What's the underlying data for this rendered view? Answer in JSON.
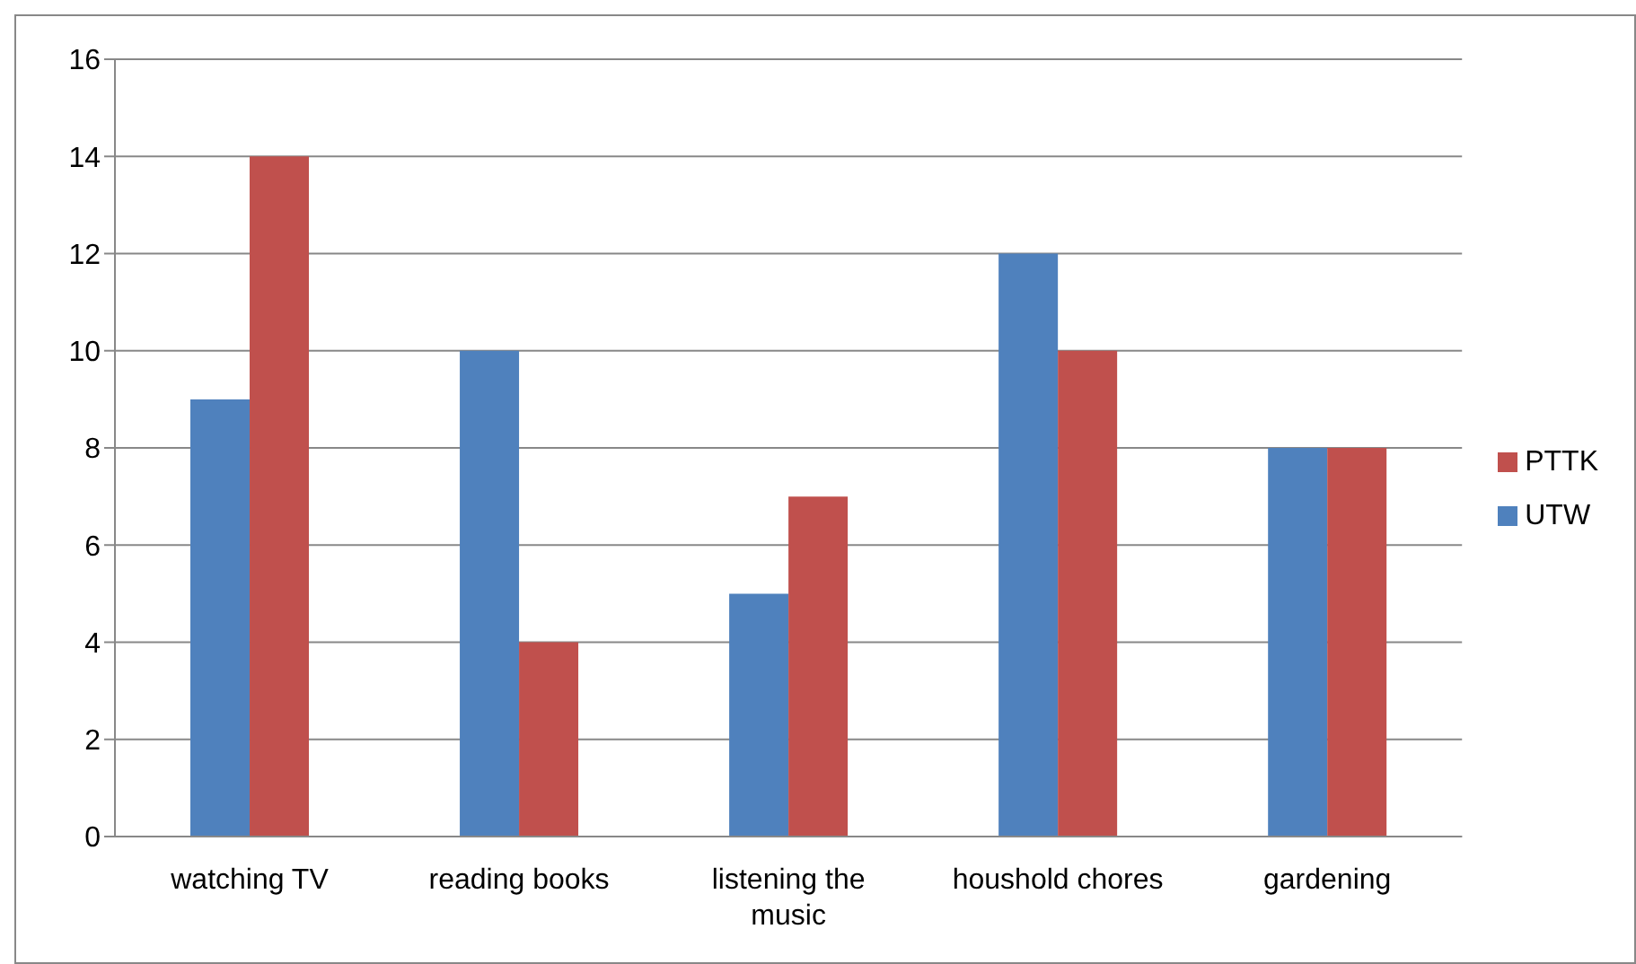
{
  "chart_data": {
    "type": "bar",
    "categories": [
      "watching TV",
      "reading books",
      "listening the music",
      "houshold chores",
      "gardening"
    ],
    "series": [
      {
        "name": "UTW",
        "color": "#4f81bd",
        "values": [
          9,
          10,
          5,
          12,
          8
        ]
      },
      {
        "name": "PTTK",
        "color": "#c0504d",
        "values": [
          14,
          4,
          7,
          10,
          8
        ]
      }
    ],
    "ylim": [
      0,
      16
    ],
    "yticks": [
      0,
      2,
      4,
      6,
      8,
      10,
      12,
      14,
      16
    ],
    "grid": "y",
    "legend": "right"
  }
}
